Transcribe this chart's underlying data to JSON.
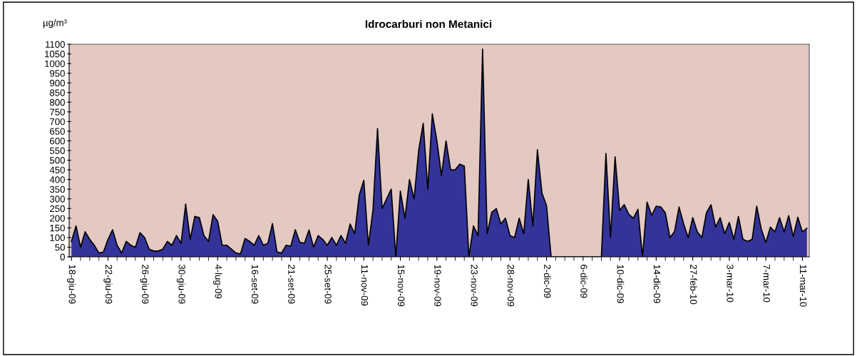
{
  "chart_data": {
    "type": "area",
    "title": "Idrocarburi non Metanici",
    "ylabel": "µg/m³",
    "categories": [
      "18-giu-09",
      null,
      null,
      null,
      null,
      null,
      null,
      null,
      "22-giu-09",
      null,
      null,
      null,
      null,
      null,
      null,
      null,
      "26-giu-09",
      null,
      null,
      null,
      null,
      null,
      null,
      null,
      "30-giu-09",
      null,
      null,
      null,
      null,
      null,
      null,
      null,
      "4-lug-09",
      null,
      null,
      null,
      null,
      null,
      null,
      null,
      "16-set-09",
      null,
      null,
      null,
      null,
      null,
      null,
      null,
      "21-set-09",
      null,
      null,
      null,
      null,
      null,
      null,
      null,
      "25-set-09",
      null,
      null,
      null,
      null,
      null,
      null,
      null,
      "11-nov-09",
      null,
      null,
      null,
      null,
      null,
      null,
      null,
      "15-nov-09",
      null,
      null,
      null,
      null,
      null,
      null,
      null,
      "19-nov-09",
      null,
      null,
      null,
      null,
      null,
      null,
      null,
      "23-nov-09",
      null,
      null,
      null,
      null,
      null,
      null,
      null,
      "28-nov-09",
      null,
      null,
      null,
      null,
      null,
      null,
      null,
      "2-dic-09",
      null,
      null,
      null,
      null,
      null,
      null,
      null,
      "6-dic-09",
      null,
      null,
      null,
      null,
      null,
      null,
      null,
      "10-dic-09",
      null,
      null,
      null,
      null,
      null,
      null,
      null,
      "14-dic-09",
      null,
      null,
      null,
      null,
      null,
      null,
      null,
      "27-feb-10",
      null,
      null,
      null,
      null,
      null,
      null,
      null,
      "3-mar-10",
      null,
      null,
      null,
      null,
      null,
      null,
      null,
      "7-mar-10",
      null,
      null,
      null,
      null,
      null,
      null,
      null,
      "11-mar-10",
      null
    ],
    "series": [
      {
        "color": "#333399",
        "values": [
          80,
          160,
          50,
          130,
          90,
          60,
          20,
          25,
          90,
          140,
          60,
          20,
          80,
          60,
          50,
          125,
          100,
          40,
          30,
          30,
          40,
          80,
          60,
          110,
          70,
          273,
          90,
          209,
          203,
          110,
          80,
          218,
          185,
          60,
          60,
          40,
          20,
          15,
          95,
          80,
          60,
          110,
          60,
          70,
          172,
          25,
          20,
          60,
          55,
          140,
          75,
          70,
          139,
          50,
          110,
          90,
          60,
          100,
          60,
          110,
          70,
          170,
          120,
          320,
          396,
          60,
          240,
          664,
          250,
          300,
          350,
          0,
          340,
          200,
          400,
          300,
          550,
          691,
          350,
          740,
          600,
          420,
          600,
          450,
          450,
          480,
          470,
          0,
          160,
          110,
          1075,
          120,
          230,
          250,
          170,
          200,
          110,
          100,
          200,
          120,
          400,
          160,
          554,
          330,
          265,
          0,
          0,
          0,
          0,
          0,
          0,
          0,
          0,
          0,
          0,
          0,
          0,
          535,
          100,
          517,
          240,
          270,
          220,
          200,
          246,
          0,
          283,
          215,
          262,
          258,
          228,
          100,
          130,
          258,
          172,
          100,
          203,
          129,
          100,
          228,
          270,
          154,
          203,
          120,
          178,
          90,
          209,
          90,
          80,
          90,
          262,
          144,
          74,
          154,
          129,
          203,
          129,
          213,
          105,
          205,
          129,
          148
        ]
      }
    ],
    "ylim": [
      0,
      1100
    ],
    "yticks": [
      0,
      50,
      100,
      150,
      200,
      250,
      300,
      350,
      400,
      450,
      500,
      550,
      600,
      650,
      700,
      750,
      800,
      850,
      900,
      950,
      1000,
      1050,
      1100
    ],
    "grid": false
  }
}
